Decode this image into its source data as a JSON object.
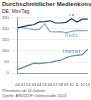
{
  "chart_data": {
    "type": "line",
    "title": "Durchschnittlicher Medienkonsum¹",
    "subtitle": "DE, Min/Tag",
    "categories": [
      "00",
      "01",
      "02",
      "03",
      "04",
      "05",
      "06",
      "07",
      "08",
      "09",
      "10",
      "11",
      "12",
      "13"
    ],
    "series": [
      {
        "name": "TV",
        "color": "#1f3a6e",
        "values": [
          203,
          209,
          214,
          217,
          230,
          231,
          235,
          225,
          225,
          228,
          244,
          229,
          242,
          242
        ]
      },
      {
        "name": "Radio",
        "color": "#8fa9c6",
        "values": [
          205,
          204,
          199,
          195,
          196,
          221,
          186,
          185,
          186,
          182,
          187,
          192,
          191,
          191
        ]
      },
      {
        "name": "Internet",
        "color": "#5b84b1",
        "values": [
          17,
          26,
          35,
          45,
          43,
          46,
          48,
          54,
          58,
          70,
          77,
          80,
          83,
          108
        ]
      }
    ],
    "ylim": [
      0,
      250
    ],
    "yticks": [
      0,
      50,
      100,
      150,
      200,
      250
    ],
    "grid": true,
    "annotations": [
      "¹Personen ab 14 Jahren",
      "Quelle: ARD/ZDF Onlinestudie 2013"
    ]
  }
}
